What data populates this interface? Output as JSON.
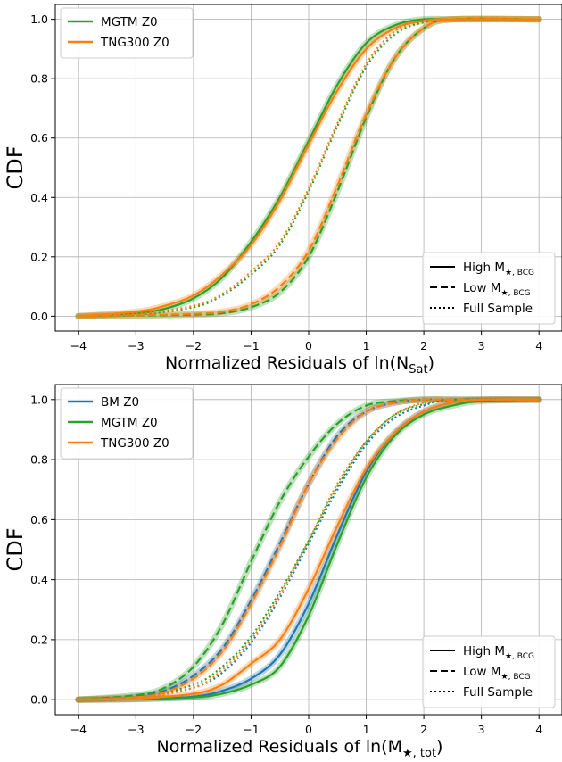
{
  "colors": {
    "BM": "#1f77b4",
    "MGTM": "#2ca02c",
    "TNG300": "#ff7f0e"
  },
  "line_styles": {
    "high": "High M★,BCG",
    "low": "Low M★,BCG",
    "full": "Full Sample"
  },
  "style_legend": [
    {
      "label": "High M",
      "sub": "★, BCG",
      "style": "solid"
    },
    {
      "label": "Low M",
      "sub": "★, BCG",
      "style": "dashed"
    },
    {
      "label": "Full Sample",
      "sub": "",
      "style": "dotted"
    }
  ],
  "chart_data": [
    {
      "type": "line",
      "ylabel": "CDF",
      "xlabel_main": "Normalized Residuals of ln(N",
      "xlabel_sub": "Sat",
      "xlabel_end": ")",
      "xlim": [
        -4.4,
        4.4
      ],
      "ylim": [
        -0.05,
        1.05
      ],
      "xticks": [
        "−4",
        "−3",
        "−2",
        "−1",
        "0",
        "1",
        "2",
        "3",
        "4"
      ],
      "yticks": [
        "0.0",
        "0.2",
        "0.4",
        "0.6",
        "0.8",
        "1.0"
      ],
      "grid": true,
      "legend_position": "top-left",
      "style_legend_position": "bottom-right",
      "legend": [
        "MGTM Z0",
        "TNG300 Z0"
      ],
      "series": [
        {
          "name": "MGTM Z0",
          "sim": "MGTM",
          "style": "high",
          "x": [
            -4,
            -3,
            -2.5,
            -2,
            -1.5,
            -1,
            -0.5,
            0,
            0.5,
            1,
            1.5,
            2,
            2.5,
            4
          ],
          "y": [
            0,
            0.01,
            0.025,
            0.06,
            0.13,
            0.25,
            0.4,
            0.59,
            0.78,
            0.92,
            0.98,
            1.0,
            1.0,
            1.0
          ]
        },
        {
          "name": "MGTM Z0",
          "sim": "MGTM",
          "style": "low",
          "x": [
            -4,
            -3,
            -2,
            -1.5,
            -1,
            -0.5,
            0,
            0.5,
            1,
            1.5,
            2,
            2.5,
            4
          ],
          "y": [
            0,
            0.002,
            0.005,
            0.01,
            0.03,
            0.08,
            0.2,
            0.42,
            0.67,
            0.87,
            0.97,
            1.0,
            1.0
          ]
        },
        {
          "name": "MGTM Z0",
          "sim": "MGTM",
          "style": "full",
          "x": [
            -4,
            -3,
            -2,
            -1.5,
            -1,
            -0.5,
            0,
            0.5,
            1,
            1.5,
            2,
            2.5,
            4
          ],
          "y": [
            0,
            0.005,
            0.03,
            0.07,
            0.14,
            0.24,
            0.42,
            0.64,
            0.84,
            0.95,
            0.99,
            1.0,
            1.0
          ]
        },
        {
          "name": "TNG300 Z0",
          "sim": "TNG300",
          "style": "high",
          "x": [
            -4,
            -3,
            -2.5,
            -2,
            -1.5,
            -1,
            -0.5,
            0,
            0.5,
            1,
            1.5,
            2,
            2.5,
            4
          ],
          "y": [
            0,
            0.015,
            0.035,
            0.07,
            0.14,
            0.24,
            0.39,
            0.58,
            0.76,
            0.9,
            0.97,
            0.995,
            1.0,
            1.0
          ]
        },
        {
          "name": "TNG300 Z0",
          "sim": "TNG300",
          "style": "low",
          "x": [
            -4,
            -3,
            -2,
            -1.5,
            -1,
            -0.5,
            0,
            0.5,
            1,
            1.5,
            2,
            2.5,
            4
          ],
          "y": [
            0,
            0.003,
            0.008,
            0.015,
            0.04,
            0.1,
            0.22,
            0.44,
            0.68,
            0.87,
            0.97,
            1.0,
            1.0
          ]
        },
        {
          "name": "TNG300 Z0",
          "sim": "TNG300",
          "style": "full",
          "x": [
            -4,
            -3,
            -2,
            -1.5,
            -1,
            -0.5,
            0,
            0.5,
            1,
            1.5,
            2,
            2.5,
            4
          ],
          "y": [
            0,
            0.008,
            0.035,
            0.075,
            0.15,
            0.25,
            0.43,
            0.65,
            0.85,
            0.96,
            0.995,
            1.0,
            1.0
          ]
        }
      ]
    },
    {
      "type": "line",
      "ylabel": "CDF",
      "xlabel_main": "Normalized Residuals of ln(M",
      "xlabel_sub": "★, tot",
      "xlabel_end": ")",
      "xlim": [
        -4.4,
        4.4
      ],
      "ylim": [
        -0.05,
        1.05
      ],
      "xticks": [
        "−4",
        "−3",
        "−2",
        "−1",
        "0",
        "1",
        "2",
        "3",
        "4"
      ],
      "yticks": [
        "0.0",
        "0.2",
        "0.4",
        "0.6",
        "0.8",
        "1.0"
      ],
      "grid": true,
      "legend_position": "top-left",
      "style_legend_position": "bottom-right",
      "legend": [
        "BM Z0",
        "MGTM Z0",
        "TNG300 Z0"
      ],
      "series": [
        {
          "name": "BM Z0",
          "sim": "BM",
          "style": "high",
          "x": [
            -4,
            -3,
            -2,
            -1.5,
            -1,
            -0.5,
            0,
            0.5,
            1,
            1.5,
            2,
            2.5,
            3,
            4
          ],
          "y": [
            0,
            0.002,
            0.01,
            0.03,
            0.07,
            0.15,
            0.32,
            0.55,
            0.76,
            0.89,
            0.96,
            0.99,
            1.0,
            1.0
          ]
        },
        {
          "name": "BM Z0",
          "sim": "BM",
          "style": "low",
          "x": [
            -4,
            -3,
            -2.5,
            -2,
            -1.5,
            -1,
            -0.5,
            0,
            0.5,
            1,
            1.5,
            2,
            2.5,
            4
          ],
          "y": [
            0,
            0.01,
            0.03,
            0.08,
            0.17,
            0.33,
            0.52,
            0.72,
            0.88,
            0.96,
            0.99,
            1.0,
            1.0,
            1.0
          ]
        },
        {
          "name": "BM Z0",
          "sim": "BM",
          "style": "full",
          "x": [
            -4,
            -3,
            -2,
            -1.5,
            -1,
            -0.5,
            0,
            0.5,
            1,
            1.5,
            2,
            2.5,
            4
          ],
          "y": [
            0,
            0.004,
            0.04,
            0.09,
            0.19,
            0.34,
            0.52,
            0.7,
            0.85,
            0.94,
            0.98,
            1.0,
            1.0
          ]
        },
        {
          "name": "MGTM Z0",
          "sim": "MGTM",
          "style": "high",
          "x": [
            -4,
            -3,
            -2,
            -1.5,
            -1,
            -0.5,
            0,
            0.5,
            1,
            1.5,
            2,
            2.5,
            3,
            4
          ],
          "y": [
            0,
            0.002,
            0.008,
            0.02,
            0.05,
            0.11,
            0.28,
            0.52,
            0.74,
            0.88,
            0.95,
            0.98,
            0.995,
            1.0
          ]
        },
        {
          "name": "MGTM Z0",
          "sim": "MGTM",
          "style": "low",
          "x": [
            -4,
            -3,
            -2.5,
            -2,
            -1.5,
            -1,
            -0.5,
            0,
            0.5,
            1,
            1.5,
            2,
            2.5,
            4
          ],
          "y": [
            0,
            0.015,
            0.04,
            0.11,
            0.25,
            0.46,
            0.66,
            0.81,
            0.92,
            0.98,
            0.995,
            1.0,
            1.0,
            1.0
          ]
        },
        {
          "name": "MGTM Z0",
          "sim": "MGTM",
          "style": "full",
          "x": [
            -4,
            -3,
            -2,
            -1.5,
            -1,
            -0.5,
            0,
            0.5,
            1,
            1.5,
            2,
            2.5,
            4
          ],
          "y": [
            0,
            0.006,
            0.05,
            0.11,
            0.21,
            0.36,
            0.53,
            0.71,
            0.86,
            0.95,
            0.985,
            1.0,
            1.0
          ]
        },
        {
          "name": "TNG300 Z0",
          "sim": "TNG300",
          "style": "high",
          "x": [
            -4,
            -3,
            -2,
            -1.5,
            -1,
            -0.5,
            0,
            0.5,
            1,
            1.5,
            2,
            2.5,
            3,
            4
          ],
          "y": [
            0,
            0.003,
            0.02,
            0.05,
            0.12,
            0.2,
            0.37,
            0.58,
            0.77,
            0.89,
            0.96,
            0.99,
            1.0,
            1.0
          ]
        },
        {
          "name": "TNG300 Z0",
          "sim": "TNG300",
          "style": "low",
          "x": [
            -4,
            -3,
            -2.5,
            -2,
            -1.5,
            -1,
            -0.5,
            0,
            0.5,
            1,
            1.5,
            2,
            2.5,
            4
          ],
          "y": [
            0,
            0.008,
            0.025,
            0.07,
            0.16,
            0.32,
            0.51,
            0.72,
            0.87,
            0.96,
            0.99,
            1.0,
            1.0,
            1.0
          ]
        },
        {
          "name": "TNG300 Z0",
          "sim": "TNG300",
          "style": "full",
          "x": [
            -4,
            -3,
            -2,
            -1.5,
            -1,
            -0.5,
            0,
            0.5,
            1,
            1.5,
            2,
            2.5,
            4
          ],
          "y": [
            0,
            0.005,
            0.04,
            0.1,
            0.2,
            0.35,
            0.53,
            0.72,
            0.86,
            0.95,
            0.99,
            1.0,
            1.0
          ]
        }
      ]
    }
  ]
}
